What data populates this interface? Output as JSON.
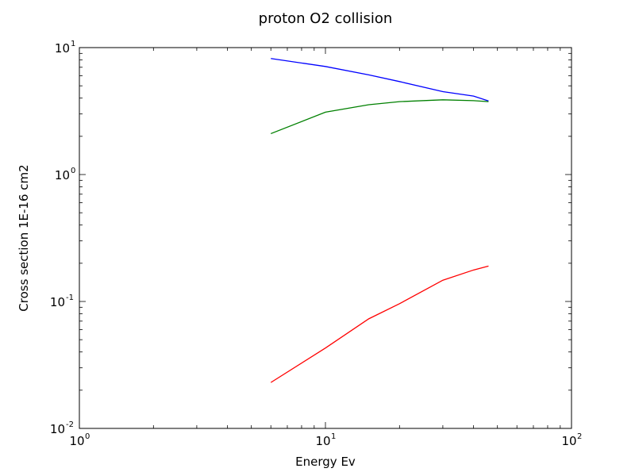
{
  "chart_data": {
    "type": "line",
    "title": "proton O2 collision",
    "xlabel": "Energy Ev",
    "ylabel": "Cross section 1E-16 cm2",
    "xscale": "log",
    "yscale": "log",
    "xlim": [
      1,
      100
    ],
    "ylim": [
      0.01,
      10
    ],
    "xticks": [
      {
        "value": 1,
        "base": "10",
        "exp": "0"
      },
      {
        "value": 10,
        "base": "10",
        "exp": "1"
      },
      {
        "value": 100,
        "base": "10",
        "exp": "2"
      }
    ],
    "yticks": [
      {
        "value": 0.01,
        "base": "10",
        "exp": "-2"
      },
      {
        "value": 0.1,
        "base": "10",
        "exp": "-1"
      },
      {
        "value": 1,
        "base": "10",
        "exp": "0"
      },
      {
        "value": 10,
        "base": "10",
        "exp": "1"
      }
    ],
    "grid": false,
    "series": [
      {
        "color": "#0000ff",
        "x": [
          6,
          10,
          15,
          20,
          30,
          40,
          46
        ],
        "y": [
          8.2,
          7.1,
          6.1,
          5.4,
          4.5,
          4.15,
          3.8
        ]
      },
      {
        "color": "#008000",
        "x": [
          6,
          10,
          15,
          20,
          30,
          40,
          46
        ],
        "y": [
          2.1,
          3.1,
          3.55,
          3.75,
          3.88,
          3.82,
          3.75
        ]
      },
      {
        "color": "#ff0000",
        "x": [
          6,
          10,
          15,
          20,
          30,
          40,
          46
        ],
        "y": [
          0.023,
          0.043,
          0.073,
          0.096,
          0.147,
          0.177,
          0.19
        ]
      }
    ]
  }
}
